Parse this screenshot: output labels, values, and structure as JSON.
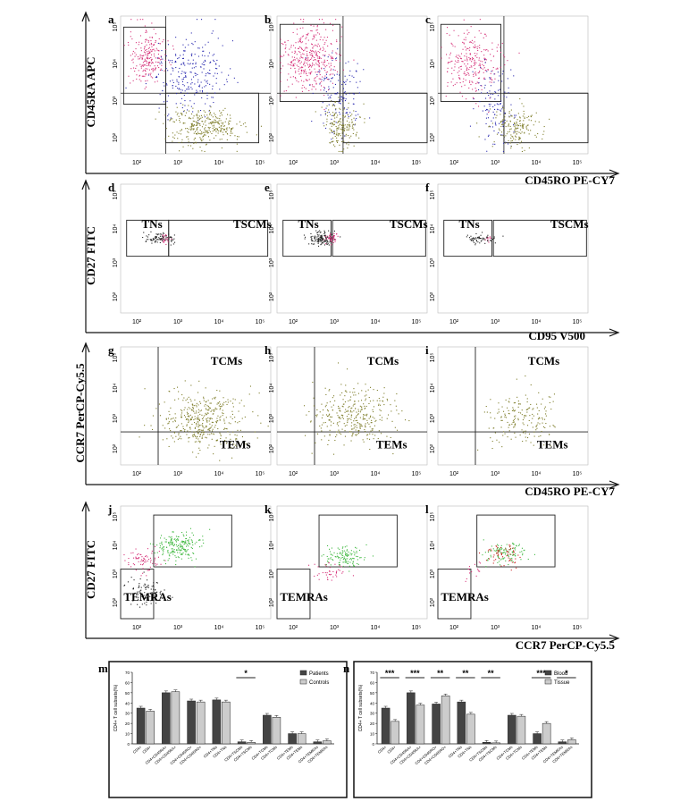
{
  "figure": {
    "rows": [
      {
        "panels": [
          {
            "letter": "a"
          },
          {
            "letter": "b"
          },
          {
            "letter": "c"
          }
        ],
        "y_axis_label": "CD45RA APC",
        "x_axis_label": "CD45RO PE-CY7",
        "ticks": [
          "10²",
          "10³",
          "10⁴",
          "10⁵"
        ],
        "quadrant_labels": []
      },
      {
        "panels": [
          {
            "letter": "d"
          },
          {
            "letter": "e"
          },
          {
            "letter": "f"
          }
        ],
        "y_axis_label": "CD27 FITC",
        "x_axis_label": "CD95 V500",
        "ticks": [
          "10²",
          "10³",
          "10⁴",
          "10⁵"
        ],
        "quadrant_labels": [
          "TNs",
          "TSCMs"
        ]
      },
      {
        "panels": [
          {
            "letter": "g"
          },
          {
            "letter": "h"
          },
          {
            "letter": "i"
          }
        ],
        "y_axis_label": "CCR7 PerCP-Cy5.5",
        "x_axis_label": "CD45RO PE-CY7",
        "ticks": [
          "10²",
          "10³",
          "10⁴",
          "10⁵"
        ],
        "quadrant_labels": [
          "TCMs",
          "TEMs"
        ]
      },
      {
        "panels": [
          {
            "letter": "j"
          },
          {
            "letter": "k"
          },
          {
            "letter": "l"
          }
        ],
        "y_axis_label": "CD27 FITC",
        "x_axis_label": "CCR7 PerCP-Cy5.5",
        "ticks": [
          "10²",
          "10³",
          "10⁴",
          "10⁵"
        ],
        "quadrant_labels": [
          "TEMRAs"
        ]
      }
    ],
    "colors": {
      "pink": "#d6337a",
      "blue": "#2b2bb0",
      "olive": "#7e7d2a",
      "black": "#222222",
      "green": "#3fb83f",
      "red": "#cc2222"
    }
  },
  "chart_data": [
    {
      "panel": "m",
      "type": "bar",
      "ylabel": "CD4+ T cell subsets(%)",
      "ylim": [
        0,
        70
      ],
      "categories": [
        "CD4+",
        "CD4+",
        "CD4+CD45RA+",
        "CD4+CD45RA+",
        "CD4+CD45RO+",
        "CD4+CD45RO+",
        "CD4+TNs",
        "CD4+TNs",
        "CD4+TSCMs",
        "CD4+TSCMs",
        "CD4+TCMs",
        "CD4+TCMs",
        "CD4+TEMs",
        "CD4+TEMs",
        "CD4+TEMRAs",
        "CD4+TEMRAs"
      ],
      "series": [
        {
          "name": "Patients",
          "color": "#444444",
          "values": [
            35,
            null,
            50,
            null,
            42,
            null,
            43,
            null,
            2,
            null,
            28,
            null,
            10,
            null,
            2,
            null
          ]
        },
        {
          "name": "Controls",
          "color": "#cccccc",
          "values": [
            null,
            32,
            null,
            51,
            null,
            41,
            null,
            41,
            null,
            1.5,
            null,
            26,
            null,
            10,
            null,
            3
          ]
        }
      ],
      "significance": [
        {
          "between": [
            8,
            9
          ],
          "label": "*"
        }
      ],
      "legend": "top-right"
    },
    {
      "panel": "n",
      "type": "bar",
      "ylabel": "CD4+ T cell subsets(%)",
      "ylim": [
        0,
        70
      ],
      "categories": [
        "CD4+",
        "CD4+",
        "CD4+CD45RA+",
        "CD4+CD45RA+",
        "CD4+CD45RO+",
        "CD4+CD45RO+",
        "CD4+TNs",
        "CD4+TNs",
        "CD4+TSCMs",
        "CD4+TSCMs",
        "CD4+TCMs",
        "CD4+TCMs",
        "CD4+TEMs",
        "CD4+TEMs",
        "CD4+TEMRAs",
        "CD4+TEMRAs"
      ],
      "series": [
        {
          "name": "Blood",
          "color": "#444444",
          "values": [
            35,
            null,
            50,
            null,
            39,
            null,
            41,
            null,
            1.5,
            null,
            28,
            null,
            10,
            null,
            2,
            null
          ]
        },
        {
          "name": "Tissue",
          "color": "#cccccc",
          "values": [
            null,
            22,
            null,
            38,
            null,
            47,
            null,
            29,
            null,
            1.0,
            null,
            27,
            null,
            20,
            null,
            4
          ]
        }
      ],
      "significance": [
        {
          "between": [
            0,
            1
          ],
          "label": "***"
        },
        {
          "between": [
            2,
            3
          ],
          "label": "***"
        },
        {
          "between": [
            4,
            5
          ],
          "label": "**"
        },
        {
          "between": [
            6,
            7
          ],
          "label": "**"
        },
        {
          "between": [
            8,
            9
          ],
          "label": "**"
        },
        {
          "between": [
            12,
            13
          ],
          "label": "***"
        },
        {
          "between": [
            14,
            15
          ],
          "label": "*"
        }
      ],
      "legend": "top-right"
    }
  ]
}
